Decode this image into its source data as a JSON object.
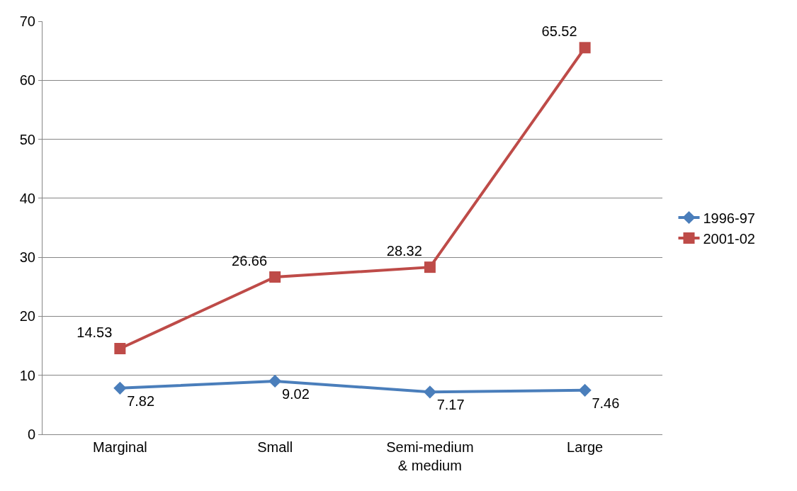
{
  "chart_data": {
    "type": "line",
    "categories": [
      "Marginal",
      "Small",
      "Semi-medium & medium",
      "Large"
    ],
    "series": [
      {
        "name": "1996-97",
        "color": "#4a7ebb",
        "marker": "diamond",
        "values": [
          7.82,
          9.02,
          7.17,
          7.46
        ]
      },
      {
        "name": "2001-02",
        "color": "#be4b48",
        "marker": "square",
        "values": [
          14.53,
          26.66,
          28.32,
          65.52
        ]
      }
    ],
    "ylim": [
      0,
      70
    ],
    "yticks": [
      0,
      10,
      20,
      30,
      40,
      50,
      60,
      70
    ],
    "grid": "y",
    "legend": "right",
    "data_labels": true
  }
}
